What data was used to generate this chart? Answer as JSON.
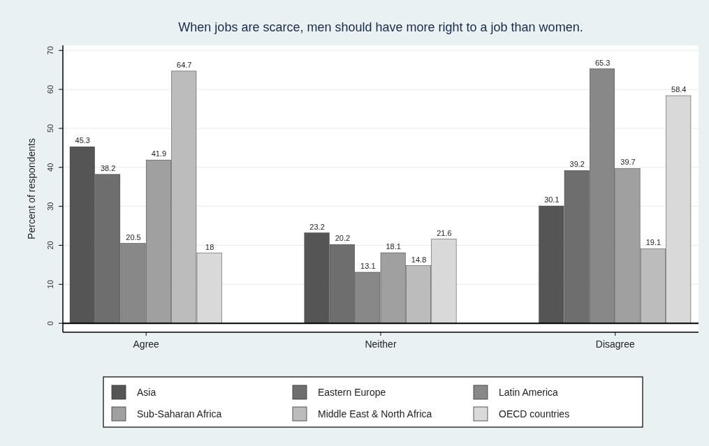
{
  "chart_data": {
    "type": "bar",
    "title": "When jobs are scarce, men should have more right to a job than women.",
    "ylabel": "Percent of respondents",
    "categories": [
      "Agree",
      "Neither",
      "Disagree"
    ],
    "series": [
      {
        "name": "Asia",
        "color": "#555555",
        "values": [
          45.3,
          23.2,
          30.1
        ]
      },
      {
        "name": "Eastern Europe",
        "color": "#6e6e6e",
        "values": [
          38.2,
          20.2,
          39.2
        ]
      },
      {
        "name": "Latin America",
        "color": "#888888",
        "values": [
          20.5,
          13.1,
          65.3
        ]
      },
      {
        "name": "Sub-Saharan Africa",
        "color": "#a0a0a0",
        "values": [
          41.9,
          18.1,
          39.7
        ]
      },
      {
        "name": "Middle East & North Africa",
        "color": "#bcbcbc",
        "values": [
          64.7,
          14.8,
          19.1
        ]
      },
      {
        "name": "OECD countries",
        "color": "#d9d9d9",
        "values": [
          18,
          21.6,
          58.4
        ]
      }
    ],
    "ylim": [
      -2.3,
      71.3
    ],
    "yticks": [
      0,
      10,
      20,
      30,
      40,
      50,
      60,
      70
    ],
    "grid": "y",
    "legend": "bottom",
    "data_labels": true,
    "ref_lines": [
      {
        "axis": "y",
        "value": 0,
        "color": "#000000"
      }
    ]
  }
}
